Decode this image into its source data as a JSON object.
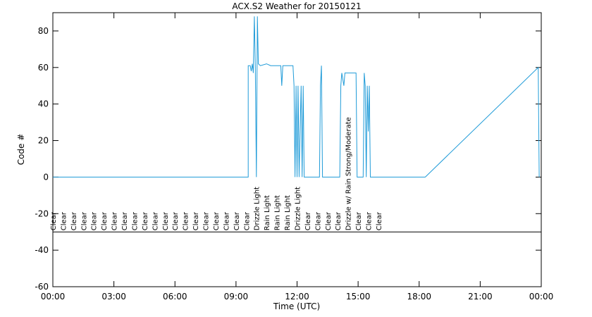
{
  "chart_data": {
    "type": "line",
    "title": "ACX.S2 Weather for 20150121",
    "x_label": "Time (UTC)",
    "y_label": "Code #",
    "xlim": [
      0,
      24
    ],
    "ylim": [
      -60,
      90
    ],
    "xticks": [
      {
        "value": 0,
        "label": "00:00"
      },
      {
        "value": 3,
        "label": "03:00"
      },
      {
        "value": 6,
        "label": "06:00"
      },
      {
        "value": 9,
        "label": "09:00"
      },
      {
        "value": 12,
        "label": "12:00"
      },
      {
        "value": 15,
        "label": "15:00"
      },
      {
        "value": 18,
        "label": "18:00"
      },
      {
        "value": 21,
        "label": "21:00"
      },
      {
        "value": 24,
        "label": "00:00"
      }
    ],
    "yticks": [
      -60,
      -40,
      -20,
      0,
      20,
      40,
      60,
      80
    ],
    "reference_line": -30,
    "series": [
      {
        "color": "#1f9bd8",
        "x": [
          0,
          9.6,
          9.6,
          9.7,
          9.75,
          9.8,
          9.85,
          9.9,
          9.95,
          10.0,
          10.05,
          10.1,
          10.2,
          10.5,
          10.7,
          11.2,
          11.25,
          11.3,
          11.8,
          11.85,
          11.9,
          11.95,
          12.0,
          12.05,
          12.1,
          12.15,
          12.2,
          12.25,
          12.3,
          12.35,
          13.1,
          13.15,
          13.2,
          13.25,
          14.1,
          14.15,
          14.2,
          14.3,
          14.35,
          14.9,
          14.95,
          15.25,
          15.3,
          15.35,
          15.4,
          15.45,
          15.5,
          15.55,
          15.6,
          18.3,
          23.85,
          23.9
        ],
        "values": [
          0,
          0,
          61,
          61,
          58,
          62,
          57,
          88,
          60,
          0,
          88,
          62,
          61,
          62,
          61,
          61,
          50,
          61,
          61,
          50,
          0,
          50,
          0,
          50,
          0,
          25,
          50,
          0,
          50,
          0,
          0,
          50,
          61,
          0,
          0,
          50,
          57,
          50,
          57,
          57,
          0,
          0,
          57,
          50,
          0,
          50,
          25,
          50,
          0,
          0,
          60,
          0
        ]
      }
    ],
    "annotations": [
      {
        "x": 0,
        "text": "Clear"
      },
      {
        "x": 0.5,
        "text": "Clear"
      },
      {
        "x": 1,
        "text": "Clear"
      },
      {
        "x": 1.5,
        "text": "Clear"
      },
      {
        "x": 2,
        "text": "Clear"
      },
      {
        "x": 2.5,
        "text": "Clear"
      },
      {
        "x": 3,
        "text": "Clear"
      },
      {
        "x": 3.5,
        "text": "Clear"
      },
      {
        "x": 4,
        "text": "Clear"
      },
      {
        "x": 4.5,
        "text": "Clear"
      },
      {
        "x": 5,
        "text": "Clear"
      },
      {
        "x": 5.5,
        "text": "Clear"
      },
      {
        "x": 6,
        "text": "Clear"
      },
      {
        "x": 6.5,
        "text": "Clear"
      },
      {
        "x": 7,
        "text": "Clear"
      },
      {
        "x": 7.5,
        "text": "Clear"
      },
      {
        "x": 8,
        "text": "Clear"
      },
      {
        "x": 8.5,
        "text": "Clear"
      },
      {
        "x": 9,
        "text": "Clear"
      },
      {
        "x": 9.5,
        "text": "Clear"
      },
      {
        "x": 10,
        "text": "Drizzle Light"
      },
      {
        "x": 10.5,
        "text": "Rain Light"
      },
      {
        "x": 11,
        "text": "Rain Light"
      },
      {
        "x": 11.5,
        "text": "Rain Light"
      },
      {
        "x": 12,
        "text": "Drizzle Light"
      },
      {
        "x": 12.5,
        "text": "Clear"
      },
      {
        "x": 13,
        "text": "Clear"
      },
      {
        "x": 13.5,
        "text": "Clear"
      },
      {
        "x": 14,
        "text": "Clear"
      },
      {
        "x": 14.5,
        "text": "Drizzle w/ Rain Strong/Moderate"
      },
      {
        "x": 15,
        "text": "Clear"
      },
      {
        "x": 15.5,
        "text": "Clear"
      },
      {
        "x": 16,
        "text": "Clear"
      }
    ]
  }
}
